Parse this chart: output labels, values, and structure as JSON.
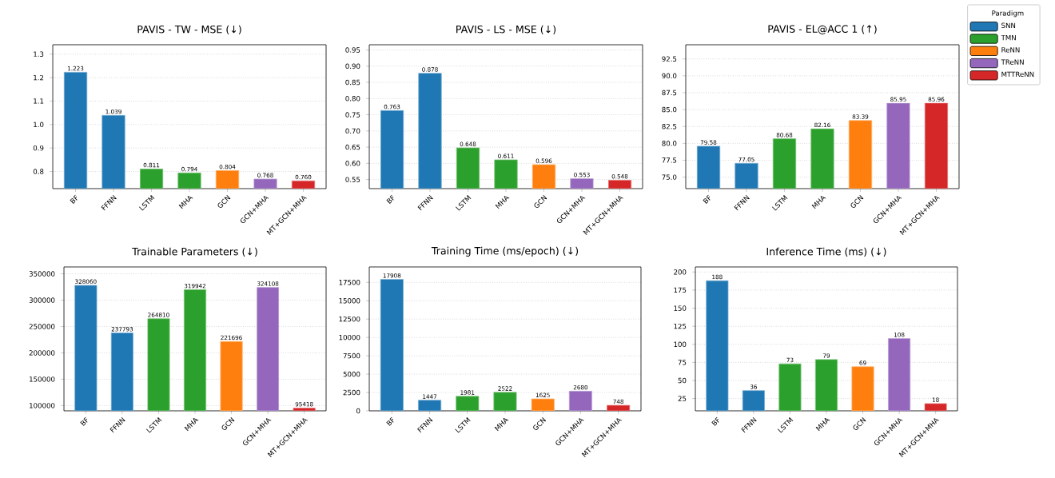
{
  "chart_data": [
    {
      "type": "bar",
      "title": "PAVIS - TW - MSE (↓)",
      "categories": [
        "BF",
        "FFNN",
        "LSTM",
        "MHA",
        "GCN",
        "GCN+MHA",
        "MT+GCN+MHA"
      ],
      "stacked": true,
      "grid": "y",
      "ylim": [
        0.727,
        1.34
      ],
      "yticks": [
        0.8,
        0.9,
        {
          "value": 1.0,
          "label": "1.0"
        },
        1.1,
        1.2,
        1.3
      ],
      "series": [
        {
          "color": "#1f77b4",
          "values": [
            1.223,
            1.039,
            null,
            null,
            null,
            null,
            null
          ],
          "value_labels": [
            "1.223",
            "1.039",
            null,
            null,
            null,
            null,
            null
          ]
        },
        {
          "color": "#2ca02c",
          "values": [
            null,
            null,
            0.811,
            0.794,
            null,
            null,
            null
          ],
          "value_labels": [
            null,
            null,
            "0.811",
            "0.794",
            null,
            null,
            null
          ]
        },
        {
          "color": "#ff7f0e",
          "values": [
            null,
            null,
            null,
            null,
            0.804,
            null,
            null
          ],
          "value_labels": [
            null,
            null,
            null,
            null,
            "0.804",
            null,
            null
          ]
        },
        {
          "color": "#9467bd",
          "values": [
            null,
            null,
            null,
            null,
            null,
            0.768,
            null
          ],
          "value_labels": [
            null,
            null,
            null,
            null,
            null,
            "0.768",
            null
          ]
        },
        {
          "color": "#d62728",
          "values": [
            null,
            null,
            null,
            null,
            null,
            null,
            0.76
          ],
          "value_labels": [
            null,
            null,
            null,
            null,
            null,
            null,
            "0.760"
          ]
        }
      ]
    },
    {
      "type": "bar",
      "title": "PAVIS - LS - MSE (↓)",
      "categories": [
        "BF",
        "FFNN",
        "LSTM",
        "MHA",
        "GCN",
        "GCN+MHA",
        "MT+GCN+MHA"
      ],
      "stacked": true,
      "grid": "y",
      "ylim": [
        0.522,
        0.966
      ],
      "yticks": [
        0.55,
        {
          "value": 0.6,
          "label": "0.60"
        },
        0.65,
        {
          "value": 0.7,
          "label": "0.70"
        },
        0.75,
        {
          "value": 0.8,
          "label": "0.80"
        },
        0.85,
        {
          "value": 0.9,
          "label": "0.90"
        },
        0.95
      ],
      "series": [
        {
          "color": "#1f77b4",
          "values": [
            0.763,
            0.878,
            null,
            null,
            null,
            null,
            null
          ],
          "value_labels": [
            "0.763",
            "0.878",
            null,
            null,
            null,
            null,
            null
          ]
        },
        {
          "color": "#2ca02c",
          "values": [
            null,
            null,
            0.648,
            0.611,
            null,
            null,
            null
          ],
          "value_labels": [
            null,
            null,
            "0.648",
            "0.611",
            null,
            null,
            null
          ]
        },
        {
          "color": "#ff7f0e",
          "values": [
            null,
            null,
            null,
            null,
            0.596,
            null,
            null
          ],
          "value_labels": [
            null,
            null,
            null,
            null,
            "0.596",
            null,
            null
          ]
        },
        {
          "color": "#9467bd",
          "values": [
            null,
            null,
            null,
            null,
            null,
            0.553,
            null
          ],
          "value_labels": [
            null,
            null,
            null,
            null,
            null,
            "0.553",
            null
          ]
        },
        {
          "color": "#d62728",
          "values": [
            null,
            null,
            null,
            null,
            null,
            null,
            0.548
          ],
          "value_labels": [
            null,
            null,
            null,
            null,
            null,
            null,
            "0.548"
          ]
        }
      ]
    },
    {
      "type": "bar",
      "title": "PAVIS - EL@ACC 1 (↑)",
      "categories": [
        "BF",
        "FFNN",
        "LSTM",
        "MHA",
        "GCN",
        "GCN+MHA",
        "MT+GCN+MHA"
      ],
      "stacked": true,
      "grid": "y",
      "legend": "top right",
      "legend_title": "Paradigm",
      "ylim": [
        73.3,
        94.6
      ],
      "yticks": [
        {
          "value": 75,
          "label": "75.0"
        },
        77.5,
        {
          "value": 80,
          "label": "80.0"
        },
        82.5,
        {
          "value": 85,
          "label": "85.0"
        },
        87.5,
        {
          "value": 90,
          "label": "90.0"
        },
        92.5
      ],
      "series": [
        {
          "name": "SNN",
          "color": "#1f77b4",
          "values": [
            79.58,
            77.05,
            null,
            null,
            null,
            null,
            null
          ],
          "value_labels": [
            "79.58",
            "77.05",
            null,
            null,
            null,
            null,
            null
          ]
        },
        {
          "name": "TMN",
          "color": "#2ca02c",
          "values": [
            null,
            null,
            80.68,
            82.16,
            null,
            null,
            null
          ],
          "value_labels": [
            null,
            null,
            "80.68",
            "82.16",
            null,
            null,
            null
          ]
        },
        {
          "name": "ReNN",
          "color": "#ff7f0e",
          "values": [
            null,
            null,
            null,
            null,
            83.39,
            null,
            null
          ],
          "value_labels": [
            null,
            null,
            null,
            null,
            "83.39",
            null,
            null
          ]
        },
        {
          "name": "TReNN",
          "color": "#9467bd",
          "values": [
            null,
            null,
            null,
            null,
            null,
            85.95,
            null
          ],
          "value_labels": [
            null,
            null,
            null,
            null,
            null,
            "85.95",
            null
          ]
        },
        {
          "name": "MTTReNN",
          "color": "#d62728",
          "values": [
            null,
            null,
            null,
            null,
            null,
            null,
            85.96
          ],
          "value_labels": [
            null,
            null,
            null,
            null,
            null,
            null,
            "85.96"
          ]
        }
      ]
    },
    {
      "type": "bar",
      "title": "Trainable Parameters (↓)",
      "categories": [
        "BF",
        "FFNN",
        "LSTM",
        "MHA",
        "GCN",
        "GCN+MHA",
        "MT+GCN+MHA"
      ],
      "stacked": true,
      "grid": "y",
      "ylim": [
        90000,
        363000
      ],
      "yticks": [
        100000,
        150000,
        200000,
        250000,
        300000,
        350000
      ],
      "series": [
        {
          "color": "#1f77b4",
          "values": [
            328060,
            237793,
            null,
            null,
            null,
            null,
            null
          ],
          "value_labels": [
            "328060",
            "237793",
            null,
            null,
            null,
            null,
            null
          ]
        },
        {
          "color": "#2ca02c",
          "values": [
            null,
            null,
            264810,
            319942,
            null,
            null,
            null
          ],
          "value_labels": [
            null,
            null,
            "264810",
            "319942",
            null,
            null,
            null
          ]
        },
        {
          "color": "#ff7f0e",
          "values": [
            null,
            null,
            null,
            null,
            221696,
            null,
            null
          ],
          "value_labels": [
            null,
            null,
            null,
            null,
            "221696",
            null,
            null
          ]
        },
        {
          "color": "#9467bd",
          "values": [
            null,
            null,
            null,
            null,
            null,
            324108,
            null
          ],
          "value_labels": [
            null,
            null,
            null,
            null,
            null,
            "324108",
            null
          ]
        },
        {
          "color": "#d62728",
          "values": [
            null,
            null,
            null,
            null,
            null,
            null,
            95418
          ],
          "value_labels": [
            null,
            null,
            null,
            null,
            null,
            null,
            "95418"
          ]
        }
      ]
    },
    {
      "type": "bar",
      "title": "Training Time (ms/epoch) (↓)",
      "categories": [
        "BF",
        "FFNN",
        "LSTM",
        "MHA",
        "GCN",
        "GCN+MHA",
        "MT+GCN+MHA"
      ],
      "stacked": true,
      "grid": "y",
      "ylim": [
        0,
        19600
      ],
      "yticks": [
        0,
        2500,
        5000,
        7500,
        10000,
        12500,
        15000,
        17500
      ],
      "series": [
        {
          "color": "#1f77b4",
          "values": [
            17908,
            1447,
            null,
            null,
            null,
            null,
            null
          ],
          "value_labels": [
            "17908",
            "1447",
            null,
            null,
            null,
            null,
            null
          ]
        },
        {
          "color": "#2ca02c",
          "values": [
            null,
            null,
            1981,
            2522,
            null,
            null,
            null
          ],
          "value_labels": [
            null,
            null,
            "1981",
            "2522",
            null,
            null,
            null
          ]
        },
        {
          "color": "#ff7f0e",
          "values": [
            null,
            null,
            null,
            null,
            1625,
            null,
            null
          ],
          "value_labels": [
            null,
            null,
            null,
            null,
            "1625",
            null,
            null
          ]
        },
        {
          "color": "#9467bd",
          "values": [
            null,
            null,
            null,
            null,
            null,
            2680,
            null
          ],
          "value_labels": [
            null,
            null,
            null,
            null,
            null,
            "2680",
            null
          ]
        },
        {
          "color": "#d62728",
          "values": [
            null,
            null,
            null,
            null,
            null,
            null,
            748
          ],
          "value_labels": [
            null,
            null,
            null,
            null,
            null,
            null,
            "748"
          ]
        }
      ]
    },
    {
      "type": "bar",
      "title": "Inference Time (ms) (↓)",
      "categories": [
        "BF",
        "FFNN",
        "LSTM",
        "MHA",
        "GCN",
        "GCN+MHA",
        "MT+GCN+MHA"
      ],
      "stacked": true,
      "grid": "y",
      "ylim": [
        8,
        207
      ],
      "yticks": [
        25,
        50,
        75,
        100,
        125,
        150,
        175,
        200
      ],
      "series": [
        {
          "color": "#1f77b4",
          "values": [
            188,
            36,
            null,
            null,
            null,
            null,
            null
          ],
          "value_labels": [
            "188",
            "36",
            null,
            null,
            null,
            null,
            null
          ]
        },
        {
          "color": "#2ca02c",
          "values": [
            null,
            null,
            73,
            79,
            null,
            null,
            null
          ],
          "value_labels": [
            null,
            null,
            "73",
            "79",
            null,
            null,
            null
          ]
        },
        {
          "color": "#ff7f0e",
          "values": [
            null,
            null,
            null,
            null,
            69,
            null,
            null
          ],
          "value_labels": [
            null,
            null,
            null,
            null,
            "69",
            null,
            null
          ]
        },
        {
          "color": "#9467bd",
          "values": [
            null,
            null,
            null,
            null,
            null,
            108,
            null
          ],
          "value_labels": [
            null,
            null,
            null,
            null,
            null,
            "108",
            null
          ]
        },
        {
          "color": "#d62728",
          "values": [
            null,
            null,
            null,
            null,
            null,
            null,
            18
          ],
          "value_labels": [
            null,
            null,
            null,
            null,
            null,
            null,
            "18"
          ]
        }
      ]
    }
  ]
}
